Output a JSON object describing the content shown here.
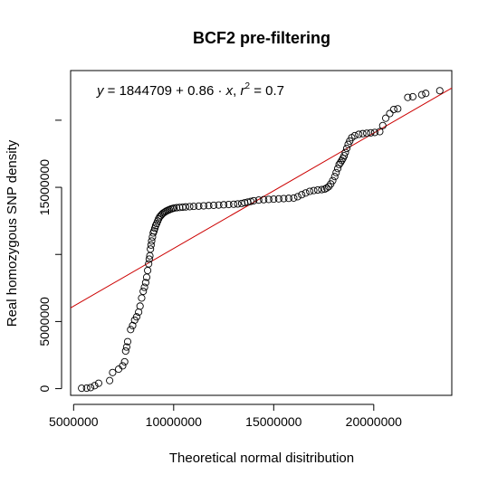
{
  "chart_data": {
    "type": "scatter",
    "title": "BCF2 pre-filtering",
    "xlabel": "Theoretical normal disitribution",
    "ylabel": "Real homozygous SNP density",
    "xlim": [
      4850000,
      23900000
    ],
    "ylim": [
      -500000,
      23700000
    ],
    "x_ticks": [
      5000000,
      10000000,
      15000000,
      20000000
    ],
    "x_tick_labels": [
      "5000000",
      "10000000",
      "15000000",
      "20000000"
    ],
    "y_ticks": [
      0,
      5000000,
      15000000
    ],
    "y_tick_labels": [
      "0",
      "5000000",
      "15000000"
    ],
    "grid": false,
    "point_color": "#000000",
    "regression_color": "#cc0000",
    "regression": {
      "intercept": 1844709,
      "slope": 0.86
    },
    "equation": {
      "y": "y",
      "eq1": " = 1844709 + 0.86 · ",
      "x": "x",
      "sep": ",  ",
      "r": "r",
      "sup": "2",
      "eq2": " = 0.7"
    },
    "series": [
      {
        "x": [
          5400000,
          5650000,
          5850000,
          6050000,
          6250000,
          6800000,
          6950000,
          7250000,
          7450000,
          7550000,
          7600000,
          7650000,
          7700000,
          7850000,
          7950000,
          8050000,
          8150000,
          8250000,
          8320000,
          8400000,
          8480000,
          8540000,
          8600000,
          8650000,
          8700000,
          8750000,
          8780000,
          8810000,
          8840000,
          8870000,
          8900000,
          8940000,
          8980000,
          9020000,
          9060000,
          9100000,
          9150000,
          9200000,
          9250000,
          9300000,
          9360000,
          9420000,
          9480000,
          9550000,
          9620000,
          9700000,
          9780000,
          9860000,
          9940000,
          10020000,
          10150000,
          10300000,
          10450000,
          10600000,
          10800000,
          11000000,
          11250000,
          11500000,
          11750000,
          12000000,
          12250000,
          12500000,
          12750000,
          13000000,
          13200000,
          13400000,
          13550000,
          13700000,
          13850000,
          14000000,
          14250000,
          14500000,
          14750000,
          15000000,
          15250000,
          15500000,
          15750000,
          16000000,
          16200000,
          16400000,
          16600000,
          16800000,
          17000000,
          17200000,
          17400000,
          17550000,
          17650000,
          17750000,
          17850000,
          17950000,
          18050000,
          18120000,
          18200000,
          18270000,
          18340000,
          18400000,
          18460000,
          18520000,
          18580000,
          18650000,
          18720000,
          18800000,
          18900000,
          19050000,
          19250000,
          19450000,
          19650000,
          19850000,
          20050000,
          20300000,
          20450000,
          20600000,
          20800000,
          21000000,
          21200000,
          21700000,
          21950000,
          22400000,
          22600000,
          23300000
        ],
        "y": [
          30000,
          40000,
          80000,
          220000,
          400000,
          600000,
          1200000,
          1450000,
          1700000,
          2000000,
          2800000,
          3100000,
          3500000,
          4400000,
          4700000,
          5100000,
          5350000,
          5700000,
          6150000,
          6750000,
          7250000,
          7550000,
          7900000,
          8300000,
          8800000,
          9300000,
          9650000,
          9900000,
          10400000,
          10700000,
          11000000,
          11300000,
          11600000,
          11750000,
          11950000,
          12150000,
          12300000,
          12480000,
          12650000,
          12800000,
          12900000,
          13000000,
          13080000,
          13150000,
          13220000,
          13280000,
          13330000,
          13380000,
          13420000,
          13450000,
          13480000,
          13500000,
          13520000,
          13540000,
          13560000,
          13580000,
          13600000,
          13620000,
          13640000,
          13660000,
          13680000,
          13700000,
          13720000,
          13740000,
          13760000,
          13800000,
          13850000,
          13900000,
          13950000,
          14000000,
          14050000,
          14080000,
          14100000,
          14120000,
          14140000,
          14160000,
          14180000,
          14200000,
          14300000,
          14450000,
          14580000,
          14700000,
          14760000,
          14800000,
          14830000,
          14870000,
          14950000,
          15050000,
          15250000,
          15500000,
          15800000,
          16100000,
          16400000,
          16700000,
          16850000,
          17000000,
          17150000,
          17350000,
          17600000,
          17900000,
          18200000,
          18450000,
          18700000,
          18850000,
          18950000,
          19000000,
          19030000,
          19060000,
          19090000,
          19150000,
          19600000,
          20150000,
          20500000,
          20800000,
          20850000,
          21700000,
          21750000,
          21900000,
          22000000,
          22200000
        ]
      }
    ]
  }
}
